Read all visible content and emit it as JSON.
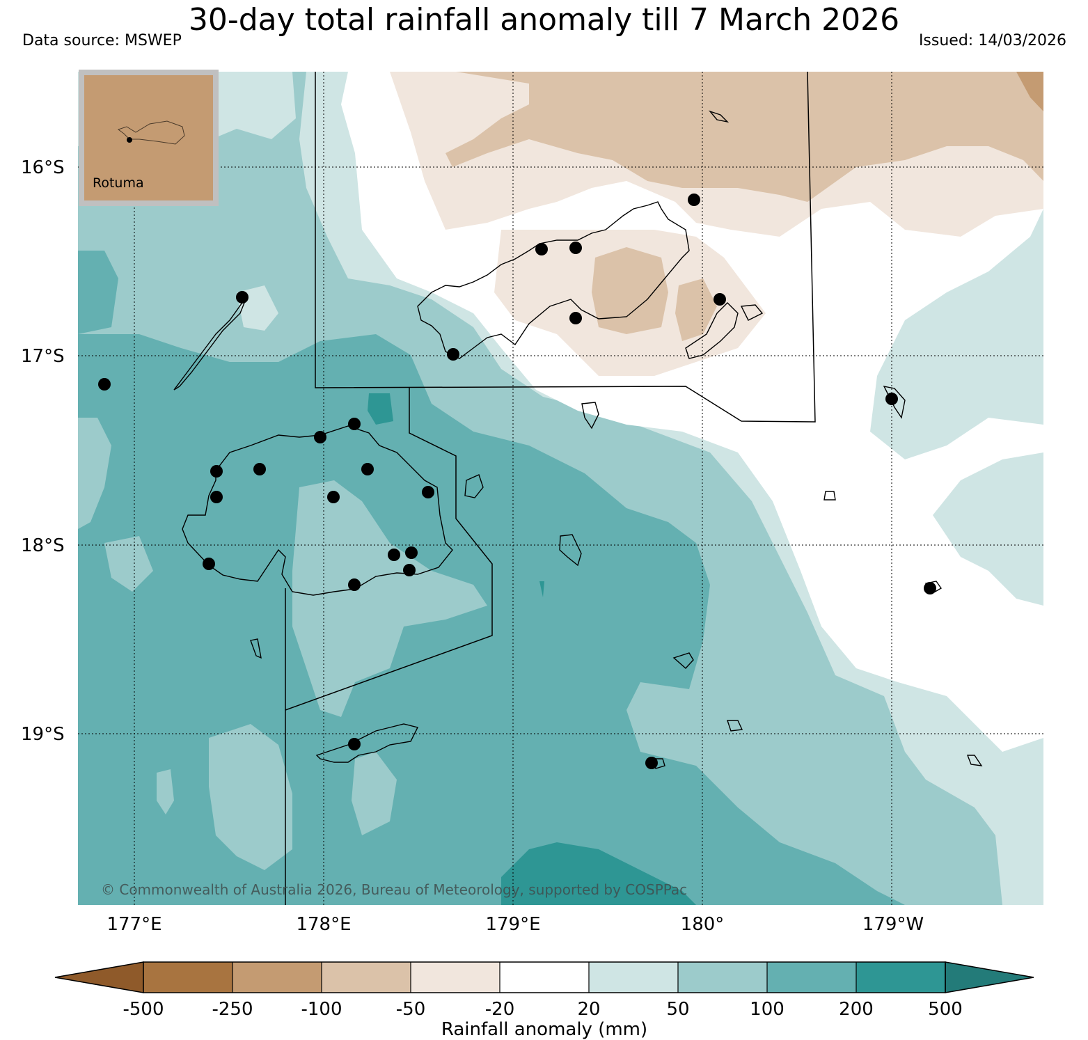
{
  "title": "30-day total rainfall anomaly till 7 March 2026",
  "data_source": "Data source: MSWEP",
  "issued": "Issued: 14/03/2026",
  "copyright": "© Commonwealth of Australia 2026, Bureau of Meteorology, supported by COSPPac",
  "inset_label": "Rotuma",
  "map": {
    "lat_ticks": [
      "16°S",
      "17°S",
      "18°S",
      "19°S"
    ],
    "lon_ticks": [
      "177°E",
      "178°E",
      "179°E",
      "180°",
      "179°W"
    ]
  },
  "colorbar": {
    "label": "Rainfall anomaly (mm)",
    "ticks": [
      "-500",
      "-250",
      "-100",
      "-50",
      "-20",
      "20",
      "50",
      "100",
      "200",
      "500"
    ],
    "colors": [
      "#8f5a2a",
      "#a87440",
      "#c49b72",
      "#dbc2a9",
      "#f1e6dd",
      "#ffffff",
      "#cfe5e4",
      "#9ccbcb",
      "#64b0b1",
      "#2e9694",
      "#237b79"
    ]
  },
  "colors": {
    "map_bg": "#9ccbcb",
    "inset_bg": "#c49b72",
    "inset_frame": "#c0c0c0",
    "station": "#000000",
    "coast": "#000000"
  }
}
